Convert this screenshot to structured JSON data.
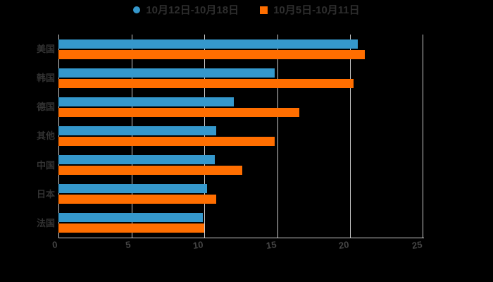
{
  "chart_data": {
    "type": "bar",
    "orientation": "horizontal",
    "title": "",
    "xlabel": "",
    "ylabel": "",
    "categories": [
      "美国",
      "韩国",
      "德国",
      "其他",
      "中国",
      "日本",
      "法国"
    ],
    "series": [
      {
        "name": "10月12日-10月18日",
        "marker": "circle",
        "color": "#3598cc",
        "values": [
          20.5,
          14.8,
          12.0,
          10.8,
          10.7,
          10.2,
          9.9
        ]
      },
      {
        "name": "10月5日-10月11日",
        "marker": "square",
        "color": "#ff6e00",
        "values": [
          21.0,
          20.2,
          16.5,
          14.8,
          12.6,
          10.8,
          10.0
        ]
      }
    ],
    "xticks": [
      0,
      5,
      10,
      15,
      20,
      25
    ],
    "xlim": [
      0,
      25
    ],
    "grid": true,
    "legend_position": "top-center"
  },
  "colors": {
    "background": "#000000",
    "grid": "#cccccc",
    "axis_line": "#cccccc",
    "tick_label": "#454545",
    "category_label": "#333333",
    "legend_text": "#2e2e2e"
  }
}
